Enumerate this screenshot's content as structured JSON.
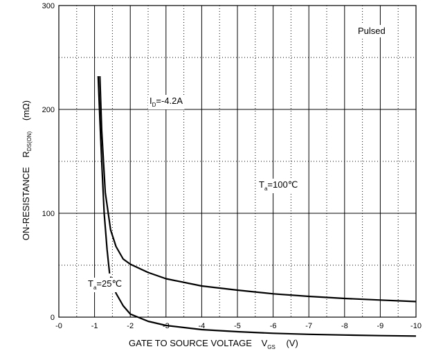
{
  "chart_data": {
    "type": "line",
    "xlabel": {
      "main": "GATE TO SOURCE VOLTAGE",
      "symbol": "V",
      "subscript": "GS",
      "unit": "(V)"
    },
    "ylabel": {
      "main": "ON-RESISTANCE",
      "symbol": "R",
      "subscript": "DS(ON)",
      "unit": "(mΩ)"
    },
    "xlim": [
      0,
      -10
    ],
    "ylim": [
      0,
      300
    ],
    "x_ticks": [
      0,
      -1,
      -2,
      -3,
      -4,
      -5,
      -6,
      -7,
      -8,
      -9,
      -10
    ],
    "x_tick_labels": [
      "-0",
      "-1",
      "-2",
      "-3",
      "-4",
      "-5",
      "-6",
      "-7",
      "-8",
      "-9",
      "-10"
    ],
    "y_ticks": [
      0,
      100,
      200,
      300
    ],
    "y_tick_labels": [
      "0",
      "100",
      "200",
      "300"
    ],
    "grid": {
      "major": "solid",
      "minor": "dotted"
    },
    "annotations": [
      {
        "id": "pulsed",
        "text": "Pulsed"
      },
      {
        "id": "id",
        "main": "I",
        "sub": "D",
        "rest": "=-4.2A"
      },
      {
        "id": "ta100",
        "main": "T",
        "sub": "a",
        "rest": "=100℃"
      },
      {
        "id": "ta25",
        "main": "T",
        "sub": "a",
        "rest": "=25℃"
      }
    ],
    "series": [
      {
        "label_ref": "ta100",
        "points": [
          [
            -1.15,
            232
          ],
          [
            -1.2,
            180
          ],
          [
            -1.3,
            120
          ],
          [
            -1.45,
            84
          ],
          [
            -1.6,
            68
          ],
          [
            -1.8,
            56
          ],
          [
            -2.0,
            51
          ],
          [
            -2.5,
            43
          ],
          [
            -3.0,
            37
          ],
          [
            -4.0,
            30
          ],
          [
            -5.0,
            26
          ],
          [
            -6.0,
            22.5
          ],
          [
            -7.0,
            20
          ],
          [
            -8.0,
            18
          ],
          [
            -9.0,
            16.5
          ],
          [
            -10.0,
            15
          ]
        ]
      },
      {
        "label_ref": "ta25",
        "points": [
          [
            -1.1,
            232
          ],
          [
            -1.15,
            190
          ],
          [
            -1.2,
            150
          ],
          [
            -1.27,
            100
          ],
          [
            -1.35,
            65
          ],
          [
            -1.42,
            42
          ]
        ]
      },
      {
        "points": [
          [
            -1.45,
            39
          ],
          [
            -1.6,
            23
          ],
          [
            -1.8,
            11
          ],
          [
            -2.0,
            3
          ],
          [
            -2.5,
            -4
          ],
          [
            -3.0,
            -8
          ],
          [
            -4.0,
            -12
          ],
          [
            -5.0,
            -14
          ],
          [
            -6.0,
            -15.5
          ],
          [
            -7.0,
            -16.5
          ],
          [
            -8.0,
            -17.2
          ],
          [
            -9.0,
            -17.8
          ],
          [
            -10.0,
            -18.2
          ]
        ]
      }
    ]
  }
}
